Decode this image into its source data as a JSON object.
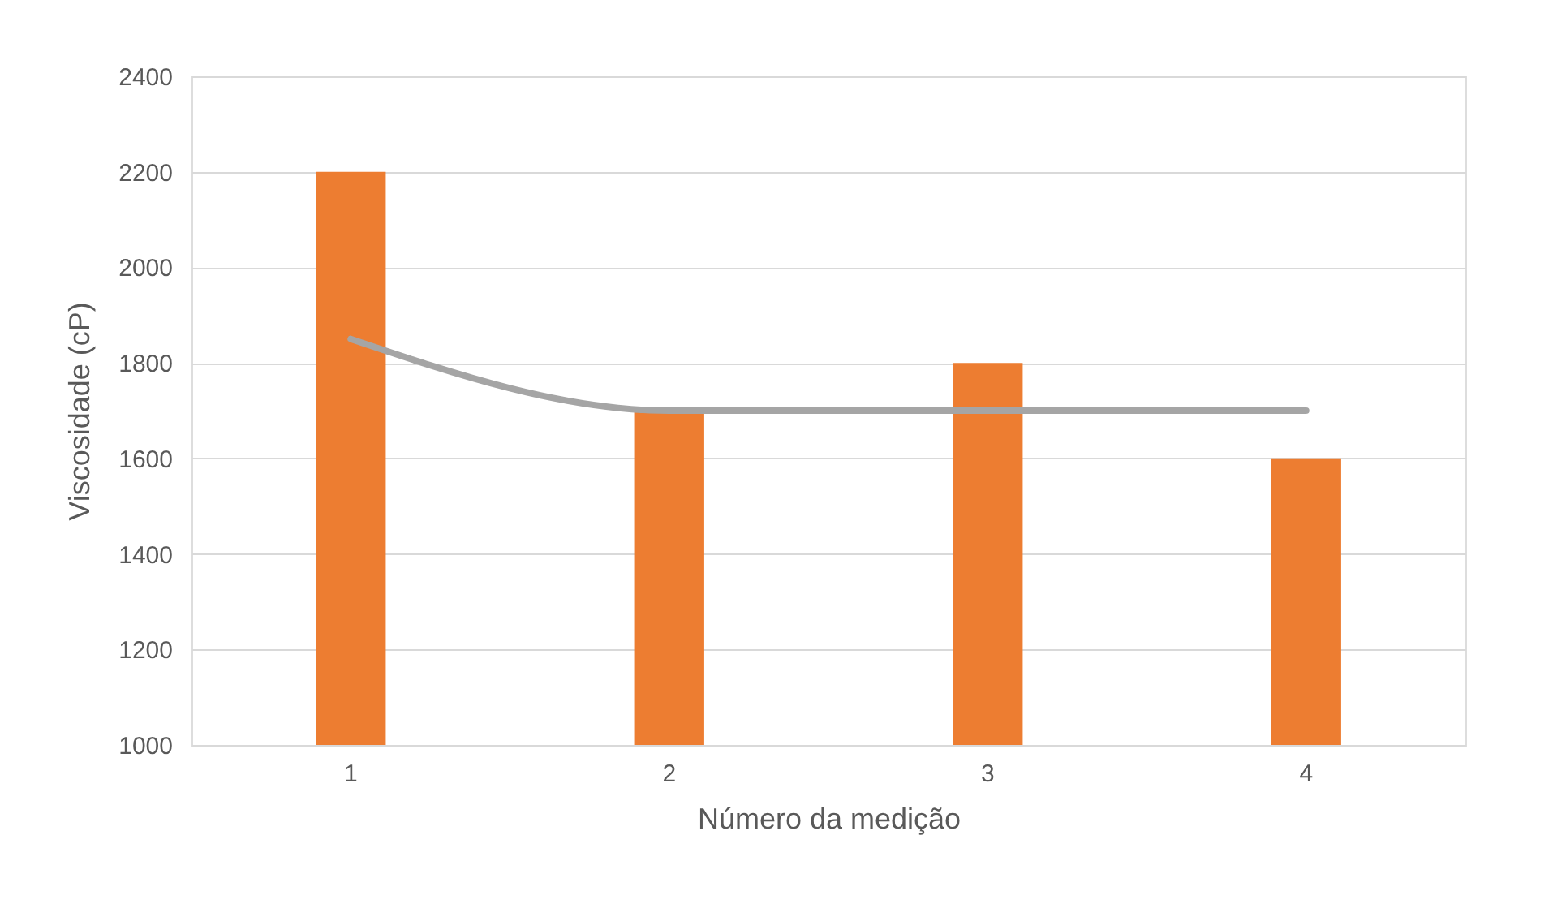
{
  "chart_data": {
    "type": "bar",
    "xlabel": "Número da medição",
    "ylabel": "Viscosidade (cP)",
    "categories": [
      "1",
      "2",
      "3",
      "4"
    ],
    "series": [
      {
        "color": "#ed7d31",
        "values": [
          2200,
          1700,
          1800,
          1600
        ]
      },
      {
        "type": "line",
        "color": "#a5a5a5",
        "values": [
          1850,
          1700,
          1700,
          1700
        ]
      }
    ],
    "ylim": [
      1000,
      2400
    ],
    "yticks": [
      1000,
      1200,
      1400,
      1600,
      1800,
      2000,
      2200,
      2400
    ],
    "grid": "y"
  }
}
